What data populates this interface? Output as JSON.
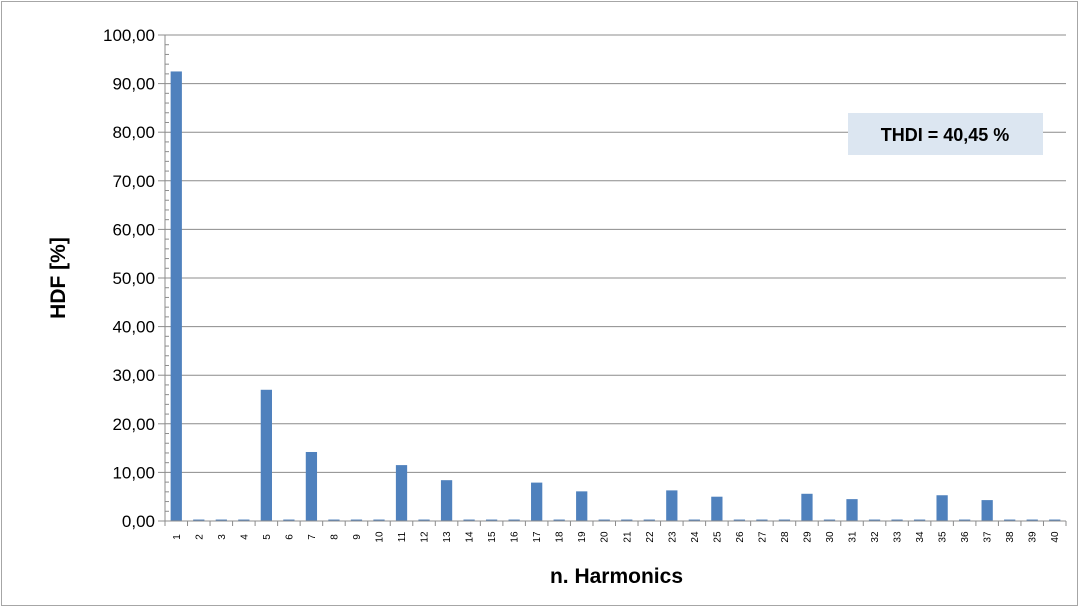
{
  "chart_data": {
    "type": "bar",
    "title": "",
    "xlabel": "n. Harmonics",
    "ylabel": "HDF [%]",
    "ylim": [
      0,
      100
    ],
    "y_ticks": [
      "0,00",
      "10,00",
      "20,00",
      "30,00",
      "40,00",
      "50,00",
      "60,00",
      "70,00",
      "80,00",
      "90,00",
      "100,00"
    ],
    "grid": true,
    "legend": "none",
    "bar_color": "#4f81bd",
    "categories": [
      "1",
      "2",
      "3",
      "4",
      "5",
      "6",
      "7",
      "8",
      "9",
      "10",
      "11",
      "12",
      "13",
      "14",
      "15",
      "16",
      "17",
      "18",
      "19",
      "20",
      "21",
      "22",
      "23",
      "24",
      "25",
      "26",
      "27",
      "28",
      "29",
      "30",
      "31",
      "32",
      "33",
      "34",
      "35",
      "36",
      "37",
      "38",
      "39",
      "40"
    ],
    "values": [
      92.5,
      0.3,
      0.3,
      0.3,
      27.0,
      0.3,
      14.2,
      0.3,
      0.3,
      0.3,
      11.5,
      0.3,
      8.4,
      0.3,
      0.3,
      0.3,
      7.9,
      0.3,
      6.1,
      0.3,
      0.3,
      0.3,
      6.3,
      0.3,
      5.0,
      0.3,
      0.3,
      0.3,
      5.6,
      0.3,
      4.5,
      0.3,
      0.3,
      0.3,
      5.3,
      0.3,
      4.3,
      0.3,
      0.3,
      0.3
    ],
    "annotation": "THDI = 40,45 %",
    "annotation_bg": "#dce6f1"
  }
}
